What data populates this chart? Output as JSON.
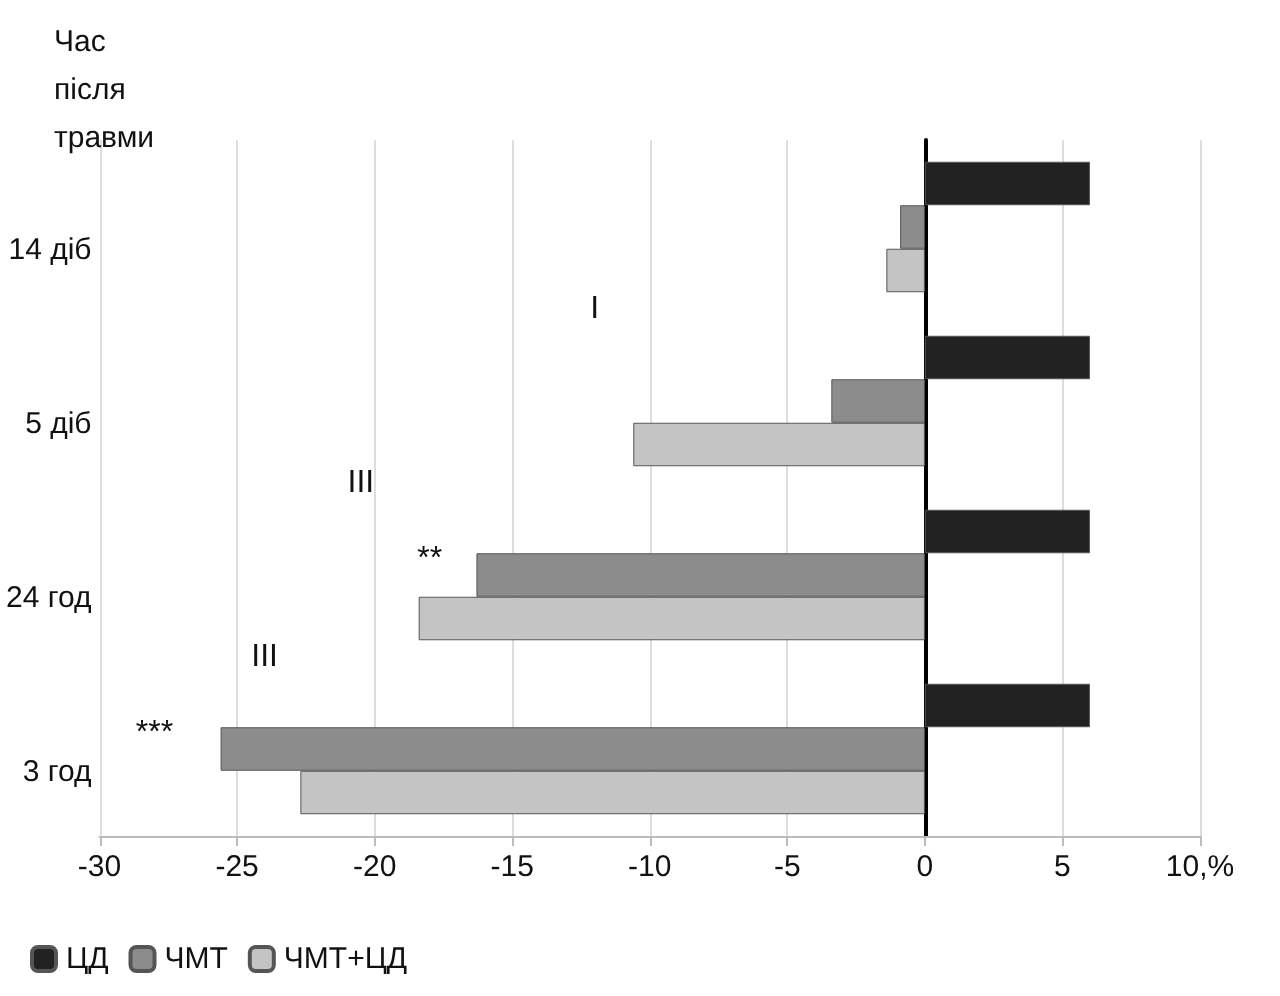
{
  "chart_data": {
    "type": "bar",
    "orientation": "horizontal",
    "ylabel": "Час після травми",
    "categories": [
      "14 діб",
      "5 діб",
      "24 год",
      "3 год"
    ],
    "series": [
      {
        "name": "ЦД",
        "color": "#222222",
        "values": [
          6,
          6,
          6,
          6
        ]
      },
      {
        "name": "ЧМТ",
        "color": "#8c8c8c",
        "values": [
          -0.9,
          -3.4,
          -16.3,
          -25.6
        ]
      },
      {
        "name": "ЧМТ+ЦД",
        "color": "#c4c4c4",
        "values": [
          -1.4,
          -10.6,
          -18.4,
          -22.7
        ]
      }
    ],
    "xlim": [
      -30,
      10
    ],
    "xticks": [
      -30,
      -25,
      -20,
      -15,
      -10,
      -5,
      0,
      5,
      {
        "value": 10,
        "label": "10,%"
      }
    ],
    "grid": "x",
    "legend": "bottom left",
    "annotations": [
      "***",
      "**",
      "III",
      "III",
      "I"
    ]
  }
}
